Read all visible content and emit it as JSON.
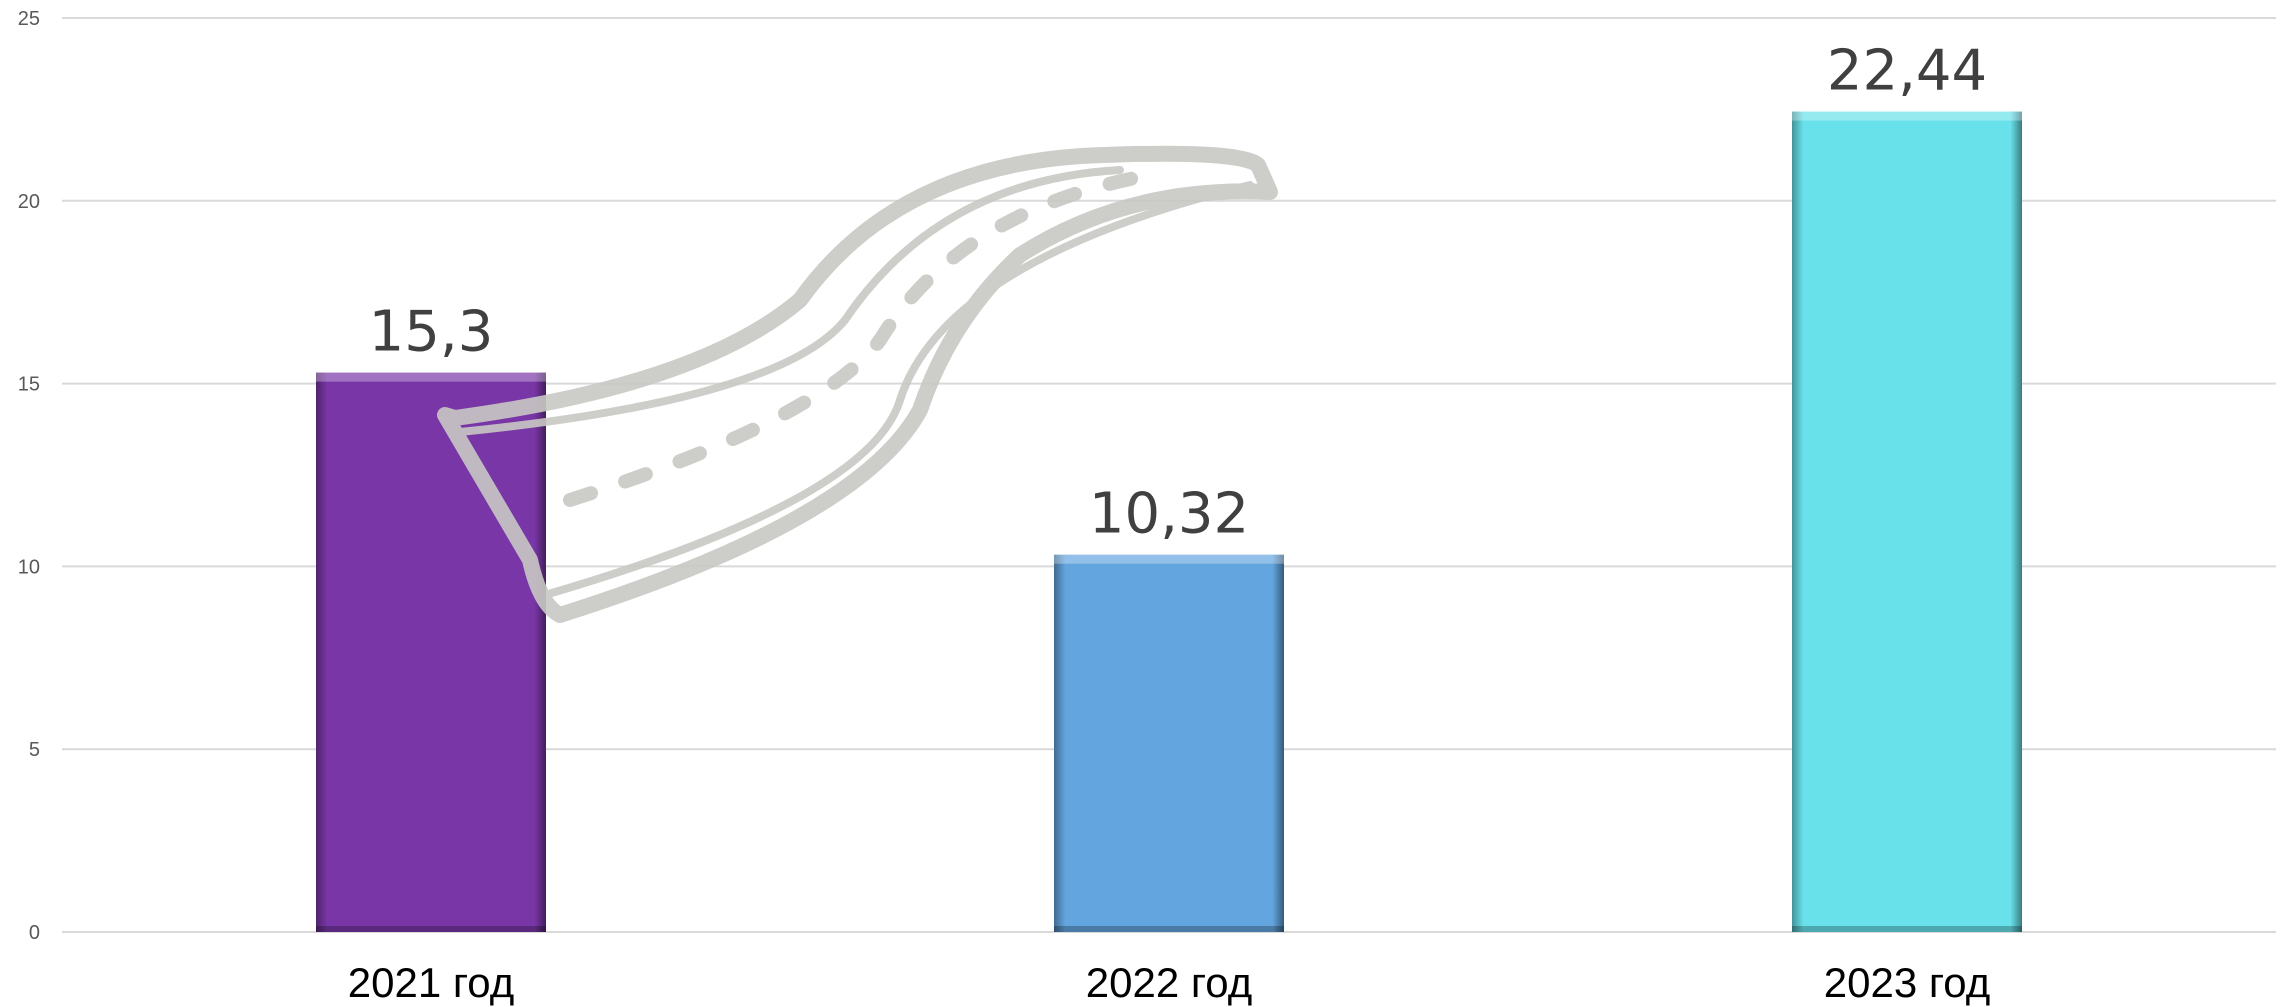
{
  "chart_data": {
    "type": "bar",
    "categories": [
      "2021 год",
      "2022 год",
      "2023 год"
    ],
    "values": [
      15.3,
      10.32,
      22.44
    ],
    "data_labels": [
      "15,3",
      "10,32",
      "22,44"
    ],
    "bar_colors": [
      "#7836A6",
      "#63A5DF",
      "#68E1EA"
    ],
    "title": "",
    "xlabel": "",
    "ylabel": "",
    "ylim": [
      0,
      25
    ],
    "yticks": [
      0,
      5,
      10,
      15,
      20,
      25
    ],
    "grid": true,
    "legend": "none"
  }
}
